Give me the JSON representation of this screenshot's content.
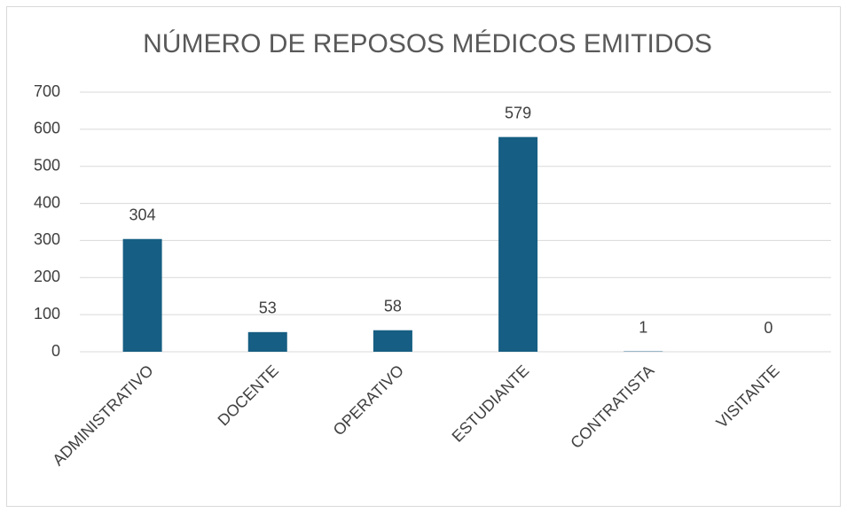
{
  "chart_data": {
    "type": "bar",
    "title": "NÚMERO DE REPOSOS MÉDICOS EMITIDOS",
    "categories": [
      "ADMINISTRATIVO",
      "DOCENTE",
      "OPERATIVO",
      "ESTUDIANTE",
      "CONTRATISTA",
      "VISITANTE"
    ],
    "values": [
      304,
      53,
      58,
      579,
      1,
      0
    ],
    "color": "#165e83",
    "ylim": [
      0,
      700
    ],
    "yticks": [
      0,
      100,
      200,
      300,
      400,
      500,
      600,
      700
    ],
    "grid": true
  }
}
